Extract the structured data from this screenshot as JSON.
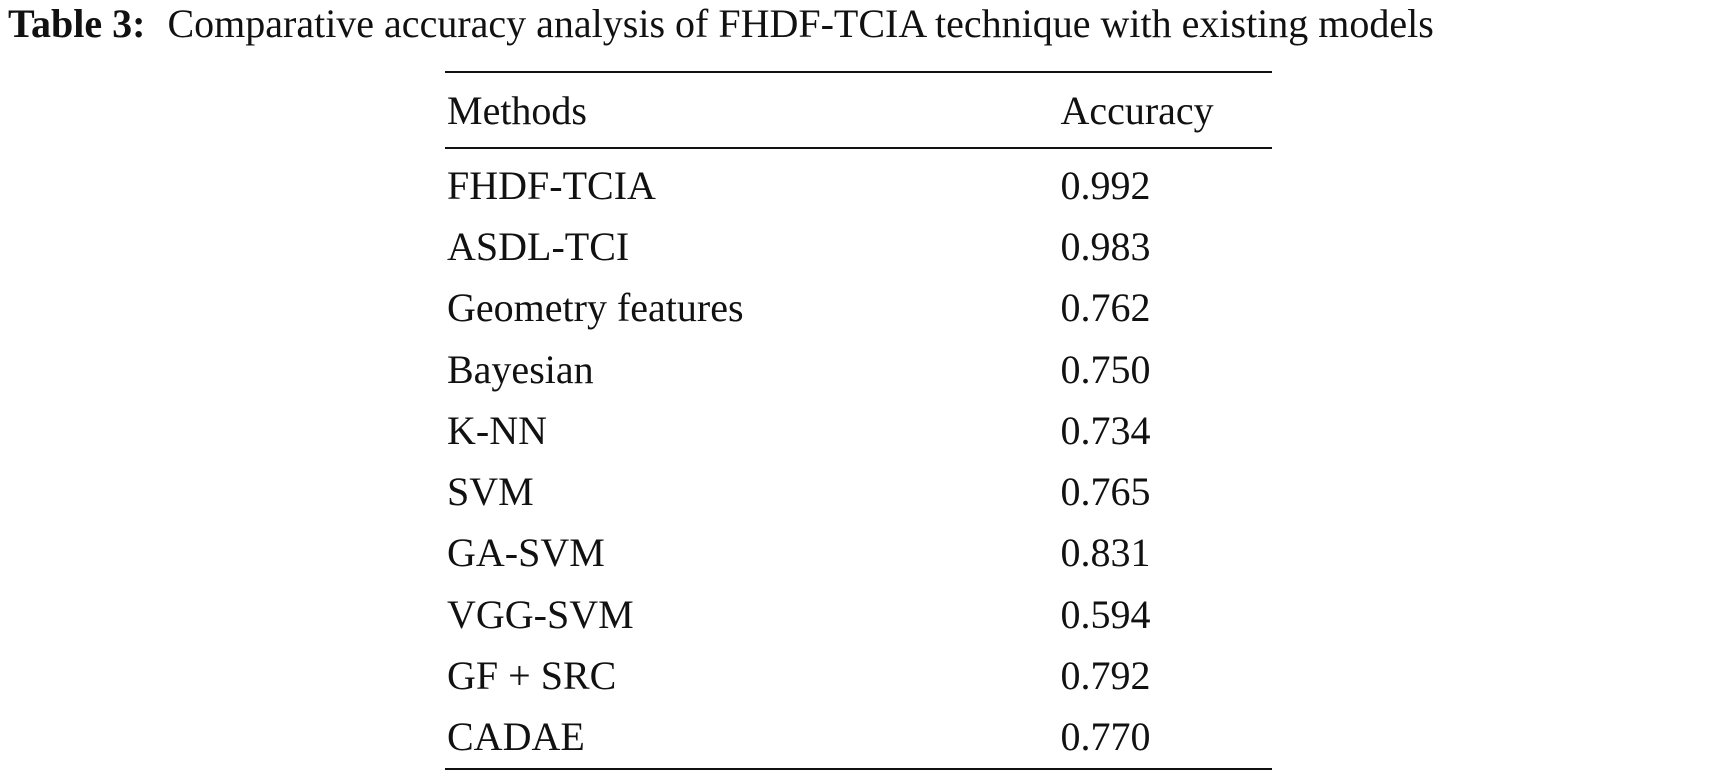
{
  "caption": {
    "label": "Table 3:",
    "text": "Comparative accuracy analysis of FHDF-TCIA technique with existing models"
  },
  "table": {
    "headers": [
      "Methods",
      "Accuracy"
    ],
    "rows": [
      {
        "method": "FHDF-TCIA",
        "accuracy": "0.992"
      },
      {
        "method": "ASDL-TCI",
        "accuracy": "0.983"
      },
      {
        "method": "Geometry features",
        "accuracy": "0.762"
      },
      {
        "method": "Bayesian",
        "accuracy": "0.750"
      },
      {
        "method": "K-NN",
        "accuracy": "0.734"
      },
      {
        "method": "SVM",
        "accuracy": "0.765"
      },
      {
        "method": "GA-SVM",
        "accuracy": "0.831"
      },
      {
        "method": "VGG-SVM",
        "accuracy": "0.594"
      },
      {
        "method": "GF + SRC",
        "accuracy": "0.792"
      },
      {
        "method": "CADAE",
        "accuracy": "0.770"
      }
    ]
  }
}
